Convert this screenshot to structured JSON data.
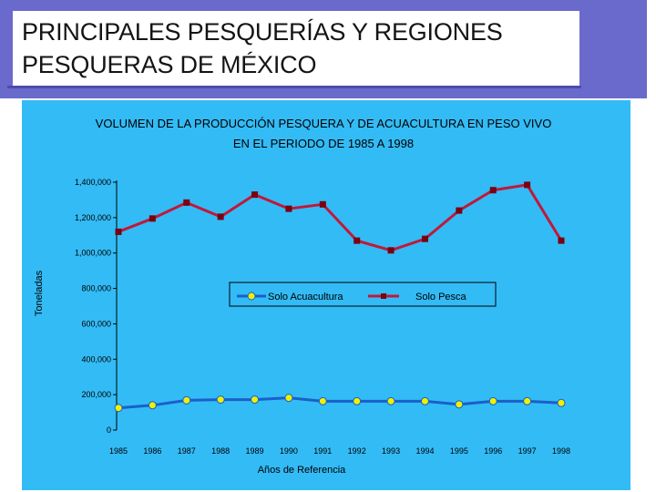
{
  "slide": {
    "title_line1": "PRINCIPALES PESQUERÍAS Y REGIONES",
    "title_line2": "PESQUERAS DE MÉXICO"
  },
  "colors": {
    "title_band": "#6a6acd",
    "chart_background": "#33bbf5",
    "series_acuacultura": "#1a60c8",
    "marker_acuacultura": "#f0f000",
    "series_pesca": "#c0193a",
    "marker_pesca": "#7a0010"
  },
  "chart_data": {
    "type": "line",
    "title_line1": "VOLUMEN DE LA PRODUCCIÓN PESQUERA Y DE ACUACULTURA EN PESO VIVO",
    "title_line2": "EN EL PERIODO DE 1985 A 1998",
    "xlabel": "Años de Referencia",
    "ylabel": "Toneladas",
    "ylim": [
      0,
      1400000
    ],
    "y_ticks": [
      0,
      200000,
      400000,
      600000,
      800000,
      1000000,
      1200000,
      1400000
    ],
    "y_tick_labels": [
      "0",
      "200,000",
      "400,000",
      "600,000",
      "800,000",
      "1,000,000",
      "1,200,000",
      "1,400,000"
    ],
    "categories": [
      "1985",
      "1986",
      "1987",
      "1988",
      "1989",
      "1990",
      "1991",
      "1992",
      "1993",
      "1994",
      "1995",
      "1996",
      "1997",
      "1998"
    ],
    "legend_position": "center-right",
    "series": [
      {
        "name": "Solo Acuacultura",
        "values": [
          125000,
          140000,
          168000,
          172000,
          172000,
          182000,
          163000,
          163000,
          163000,
          163000,
          145000,
          163000,
          163000,
          153000
        ]
      },
      {
        "name": "Solo Pesca",
        "values": [
          1120000,
          1195000,
          1285000,
          1205000,
          1330000,
          1250000,
          1275000,
          1070000,
          1015000,
          1080000,
          1240000,
          1355000,
          1385000,
          1070000
        ]
      }
    ]
  }
}
